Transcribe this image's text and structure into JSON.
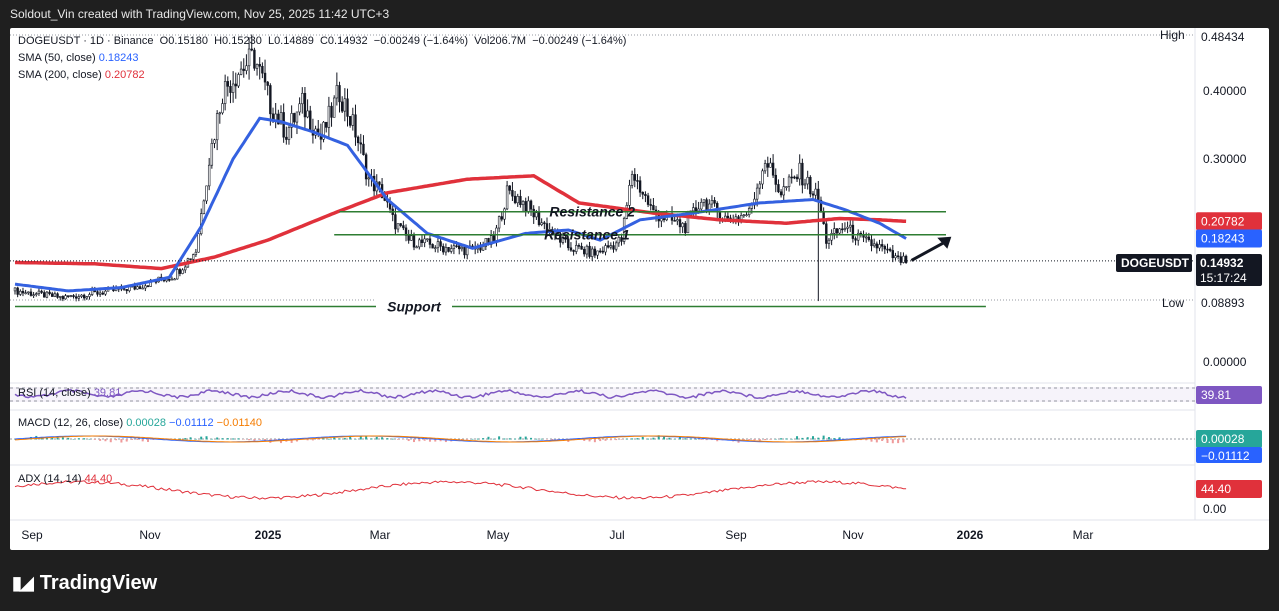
{
  "header": {
    "attribution": "Soldout_Vin created with TradingView.com, Nov 25, 2025 11:42 UTC+3"
  },
  "footer": {
    "brand": "TradingView"
  },
  "legend": {
    "symbol_line": "DOGEUSDT · 1D · Binance",
    "o_label": "O",
    "o_value": "0.15180",
    "h_label": "H",
    "h_value": "0.15230",
    "l_label": "L",
    "l_value": "0.14889",
    "c_label": "C",
    "c_value": "0.14932",
    "change": "−0.00249 (−1.64%)",
    "vol_label": "Vol",
    "vol_value": "206.7M",
    "vol_change": "−0.00249 (−1.64%)",
    "sma50_label": "SMA (50, close)",
    "sma50_value": "0.18243",
    "sma200_label": "SMA (200, close)",
    "sma200_value": "0.20782",
    "rsi_label": "RSI (14, close)",
    "rsi_value": "39.81",
    "macd_label": "MACD (12, 26, close)",
    "macd_v1": "0.00028",
    "macd_v2": "−0.01112",
    "macd_v3": "−0.01140",
    "adx_label": "ADX (14, 14)",
    "adx_value": "44.40"
  },
  "colors": {
    "up": "#131722",
    "sma50": "#3461e0",
    "sma200": "#e0313b",
    "annotation": "#2e7d32",
    "rsi": "#7e57c2",
    "macd_line": "#2962ff",
    "macd_signal": "#f57c00",
    "hist": "#26a69a",
    "adx": "#e0313b"
  },
  "chart_data": {
    "type": "candlestick",
    "symbol": "DOGEUSDT",
    "timeframe": "1D",
    "exchange": "Binance",
    "x_ticks": [
      "Sep",
      "Nov",
      "2025",
      "Mar",
      "May",
      "Jul",
      "Sep",
      "Nov",
      "2026",
      "Mar"
    ],
    "x_ticks_bold": [
      "2025",
      "2026"
    ],
    "y_ticks": [
      "0.40000",
      "0.30000",
      "0.00000"
    ],
    "price_labels": {
      "high_label": "High",
      "high": "0.48434",
      "low_label": "Low",
      "low": "0.08893",
      "sma200": "0.20782",
      "sma50": "0.18243",
      "symbol": "DOGEUSDT",
      "last": "0.14932",
      "countdown": "15:17:24",
      "rsi": "39.81",
      "macd": "0.00028",
      "macd2": "−0.01112",
      "adx": "44.40",
      "adx_axis": "0.00"
    },
    "close_anchors": [
      [
        0,
        0.105
      ],
      [
        18,
        0.095
      ],
      [
        45,
        0.11
      ],
      [
        60,
        0.128
      ],
      [
        68,
        0.165
      ],
      [
        73,
        0.3
      ],
      [
        78,
        0.4
      ],
      [
        84,
        0.43
      ],
      [
        90,
        0.45
      ],
      [
        96,
        0.38
      ],
      [
        102,
        0.34
      ],
      [
        108,
        0.38
      ],
      [
        115,
        0.33
      ],
      [
        122,
        0.4
      ],
      [
        128,
        0.34
      ],
      [
        133,
        0.27
      ],
      [
        138,
        0.25
      ],
      [
        142,
        0.21
      ],
      [
        148,
        0.18
      ],
      [
        160,
        0.17
      ],
      [
        172,
        0.165
      ],
      [
        180,
        0.18
      ],
      [
        185,
        0.25
      ],
      [
        190,
        0.24
      ],
      [
        197,
        0.21
      ],
      [
        208,
        0.17
      ],
      [
        218,
        0.16
      ],
      [
        228,
        0.18
      ],
      [
        232,
        0.28
      ],
      [
        240,
        0.22
      ],
      [
        252,
        0.2
      ],
      [
        258,
        0.24
      ],
      [
        268,
        0.21
      ],
      [
        276,
        0.22
      ],
      [
        282,
        0.3
      ],
      [
        288,
        0.25
      ],
      [
        295,
        0.28
      ],
      [
        302,
        0.24
      ],
      [
        305,
        0.18
      ],
      [
        312,
        0.2
      ],
      [
        318,
        0.18
      ],
      [
        325,
        0.17
      ],
      [
        332,
        0.15
      ],
      [
        335,
        0.14932
      ]
    ],
    "sma50_anchors": [
      [
        0,
        0.115
      ],
      [
        20,
        0.105
      ],
      [
        40,
        0.11
      ],
      [
        58,
        0.125
      ],
      [
        70,
        0.2
      ],
      [
        82,
        0.3
      ],
      [
        92,
        0.36
      ],
      [
        100,
        0.355
      ],
      [
        112,
        0.34
      ],
      [
        125,
        0.32
      ],
      [
        140,
        0.24
      ],
      [
        155,
        0.19
      ],
      [
        172,
        0.168
      ],
      [
        192,
        0.19
      ],
      [
        208,
        0.195
      ],
      [
        220,
        0.18
      ],
      [
        235,
        0.21
      ],
      [
        255,
        0.22
      ],
      [
        280,
        0.235
      ],
      [
        300,
        0.24
      ],
      [
        312,
        0.225
      ],
      [
        325,
        0.205
      ],
      [
        335,
        0.18243
      ]
    ],
    "sma200_anchors": [
      [
        0,
        0.147
      ],
      [
        30,
        0.145
      ],
      [
        55,
        0.138
      ],
      [
        75,
        0.155
      ],
      [
        95,
        0.18
      ],
      [
        120,
        0.22
      ],
      [
        140,
        0.25
      ],
      [
        170,
        0.27
      ],
      [
        195,
        0.275
      ],
      [
        212,
        0.235
      ],
      [
        240,
        0.22
      ],
      [
        265,
        0.21
      ],
      [
        290,
        0.205
      ],
      [
        310,
        0.212
      ],
      [
        325,
        0.21
      ],
      [
        335,
        0.20782
      ]
    ],
    "wick_low_spike": {
      "x": 302,
      "low": 0.09
    },
    "annotations": [
      {
        "label": "Resistance 2",
        "y": 0.222,
        "x0": 122,
        "x1": 350
      },
      {
        "label": "Resistance 1",
        "y": 0.188,
        "x0": 120,
        "x1": 350
      },
      {
        "label": "Support",
        "y": 0.082,
        "x0": 0,
        "x1": 365
      }
    ],
    "arrow": {
      "x0": 337,
      "y0": 0.15,
      "x1": 352,
      "y1": 0.185
    },
    "rsi_series_note": "oscillator sub-panes rendered as approximated lines"
  }
}
